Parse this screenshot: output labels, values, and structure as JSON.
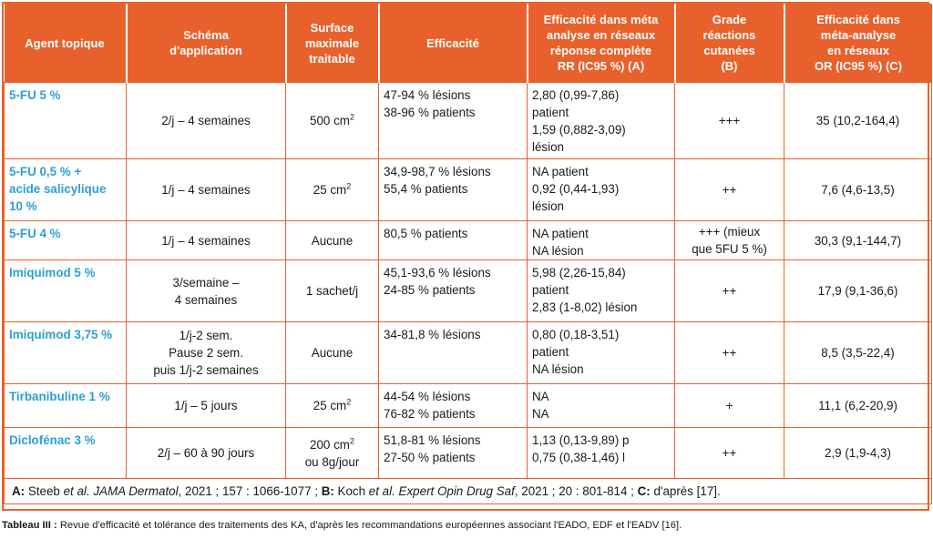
{
  "headers": [
    "Agent topique",
    "Schéma d'application",
    "Surface maximale traitable",
    "Efficacité",
    "Efficacité dans méta analyse en réseaux réponse complète RR (IC95 %) (A)",
    "Grade réactions cutanées (B)",
    "Efficacité dans méta-analyse en réseaux OR (IC95 %) (C)"
  ],
  "header_lines": [
    [
      "Agent topique"
    ],
    [
      "Schéma",
      "d'application"
    ],
    [
      "Surface",
      "maximale",
      "traitable"
    ],
    [
      "Efficacité"
    ],
    [
      "Efficacité dans méta",
      "analyse en réseaux",
      "réponse complète",
      "RR (IC95 %) (A)"
    ],
    [
      "Grade",
      "réactions",
      "cutanées",
      "(B)"
    ],
    [
      "Efficacité dans",
      "méta-analyse",
      "en réseaux",
      "OR (IC95 %) (C)"
    ]
  ],
  "rows": [
    {
      "agent": [
        "5-FU 5 %"
      ],
      "schema": [
        "2/j – 4 semaines"
      ],
      "surface": "500 cm",
      "surface_sup": "2",
      "efficacite": [
        "47-94 % lésions",
        "38-96 % patients"
      ],
      "rr": [
        "2,80 (0,99-7,86)",
        "patient",
        "1,59 (0,882-3,09)",
        "lésion"
      ],
      "grade": [
        "+++"
      ],
      "or": "35 (10,2-164,4)"
    },
    {
      "agent": [
        "5-FU 0,5 % +",
        "acide salicylique",
        "10 %"
      ],
      "schema": [
        "1/j – 4 semaines"
      ],
      "surface": "25 cm",
      "surface_sup": "2",
      "efficacite": [
        "34,9-98,7 % lésions",
        "55,4 % patients"
      ],
      "rr": [
        "NA patient",
        "0,92 (0,44-1,93)",
        "lésion"
      ],
      "grade": [
        "++"
      ],
      "or": "7,6 (4,6-13,5)"
    },
    {
      "agent": [
        "5-FU 4 %"
      ],
      "schema": [
        "1/j – 4 semaines"
      ],
      "surface": "Aucune",
      "surface_sup": "",
      "efficacite": [
        "80,5 % patients"
      ],
      "rr": [
        "NA patient",
        "NA lésion"
      ],
      "grade": [
        "+++ (mieux",
        "que 5FU 5 %)"
      ],
      "or": "30,3 (9,1-144,7)"
    },
    {
      "agent": [
        "Imiquimod 5 %"
      ],
      "schema": [
        "3/semaine –",
        "4 semaines"
      ],
      "surface": "1 sachet/j",
      "surface_sup": "",
      "efficacite": [
        "45,1-93,6 % lésions",
        "24-85 % patients"
      ],
      "rr": [
        "5,98 (2,26-15,84)",
        "patient",
        "2,83 (1-8,02) lésion"
      ],
      "grade": [
        "++"
      ],
      "or": "17,9 (9,1-36,6)"
    },
    {
      "agent": [
        "Imiquimod 3,75 %"
      ],
      "schema": [
        "1/j-2 sem.",
        "Pause 2 sem.",
        "puis 1/j-2 semaines"
      ],
      "surface": "Aucune",
      "surface_sup": "",
      "efficacite": [
        "34-81,8 % lésions"
      ],
      "rr": [
        "0,80 (0,18-3,51)",
        "patient",
        "NA lésion"
      ],
      "grade": [
        "++"
      ],
      "or": "8,5 (3,5-22,4)"
    },
    {
      "agent": [
        "Tirbanibuline 1 %"
      ],
      "schema": [
        "1/j – 5 jours"
      ],
      "surface": "25 cm",
      "surface_sup": "2",
      "efficacite": [
        "44-54 % lésions",
        "76-82 % patients"
      ],
      "rr": [
        "NA",
        "NA"
      ],
      "grade": [
        "+"
      ],
      "or": "11,1 (6,2-20,9)"
    },
    {
      "agent": [
        "Diclofénac 3 %"
      ],
      "schema": [
        "2/j – 60 à 90 jours"
      ],
      "surface": "200 cm",
      "surface_sup": "2",
      "surface_extra": "ou 8g/jour",
      "efficacite": [
        "51,8-81 % lésions",
        "27-50 % patients"
      ],
      "rr": [
        "1,13 (0,13-9,89) p",
        "0,75 (0,38-1,46) l"
      ],
      "grade": [
        "++"
      ],
      "or": "2,9 (1,9-4,3)"
    }
  ],
  "footnote": {
    "a_key": "A:",
    "a_pre": " Steeb ",
    "a_em": "et al. JAMA Dermatol",
    "a_post": ", 2021 ; 157 : 1066-1077 ; ",
    "b_key": "B:",
    "b_pre": " Koch ",
    "b_em": "et al. Expert Opin Drug Saf",
    "b_post": ", 2021 ; 20 : 801-814 ; ",
    "c_key": "C:",
    "c_post": " d'après [17]."
  },
  "caption": {
    "label": "Tableau III :",
    "text": " Revue d'efficacité et tolérance des traitements des KA, d'après les recommandations européennes associant l'EADO, EDF et l'EADV [16]."
  },
  "colors": {
    "accent": "#e8612c",
    "agent_text": "#2d9fd6"
  }
}
